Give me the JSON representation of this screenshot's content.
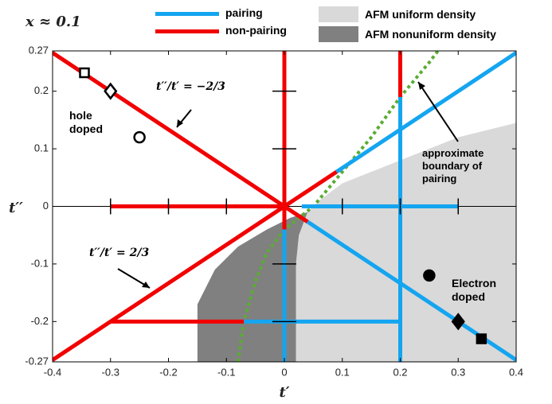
{
  "chart_data": {
    "type": "line",
    "title": "x ≈ 0.1",
    "xlabel": "t′",
    "ylabel": "t′′",
    "xlim": [
      -0.4,
      0.4
    ],
    "ylim": [
      -0.27,
      0.27
    ],
    "xticks": [
      -0.4,
      -0.3,
      -0.2,
      -0.1,
      0,
      0.1,
      0.2,
      0.3,
      0.4
    ],
    "yticks": [
      -0.27,
      -0.2,
      -0.1,
      0,
      0.1,
      0.2,
      0.27
    ],
    "series": [
      {
        "name": "pairing",
        "color": "#14a5f0",
        "segments": [
          {
            "x": [
              0,
              0
            ],
            "y": [
              -0.04,
              -0.27
            ]
          },
          {
            "x": [
              0.03,
              0.3
            ],
            "y": [
              0,
              0
            ]
          },
          {
            "x": [
              -0.07,
              0.2
            ],
            "y": [
              -0.2,
              -0.2
            ]
          },
          {
            "x": [
              0.2,
              0.2
            ],
            "y": [
              0.19,
              -0.27
            ]
          },
          {
            "x": [
              0.09,
              0.4
            ],
            "y": [
              0.06,
              0.2667
            ]
          },
          {
            "x": [
              0.04,
              0.4
            ],
            "y": [
              -0.0267,
              -0.2667
            ]
          }
        ]
      },
      {
        "name": "non-pairing",
        "color": "#f20000",
        "segments": [
          {
            "x": [
              -0.4,
              0
            ],
            "y": [
              0.2667,
              0
            ]
          },
          {
            "x": [
              -0.4,
              0
            ],
            "y": [
              -0.2667,
              0
            ]
          },
          {
            "x": [
              0,
              0
            ],
            "y": [
              0.27,
              -0.04
            ]
          },
          {
            "x": [
              -0.3,
              0
            ],
            "y": [
              0,
              0
            ]
          },
          {
            "x": [
              -0.3,
              -0.07
            ],
            "y": [
              -0.2,
              -0.2
            ]
          },
          {
            "x": [
              0.2,
              0.2
            ],
            "y": [
              0.27,
              0.19
            ]
          },
          {
            "x": [
              0,
              0.09
            ],
            "y": [
              0,
              0.06
            ]
          },
          {
            "x": [
              0,
              0.04
            ],
            "y": [
              0,
              -0.0267
            ]
          }
        ]
      }
    ],
    "regions": [
      {
        "name": "AFM uniform density",
        "color": "#d9d9d9",
        "x": [
          0.02,
          0.02,
          0.025,
          0.04,
          0.06,
          0.1,
          0.2,
          0.3,
          0.4,
          0.4
        ],
        "y": [
          -0.27,
          -0.1,
          -0.05,
          -0.01,
          0.01,
          0.04,
          0.08,
          0.12,
          0.145,
          -0.27
        ]
      },
      {
        "name": "AFM nonuniform density",
        "color": "#808080",
        "x": [
          -0.15,
          -0.15,
          -0.12,
          -0.08,
          -0.03,
          0.01,
          0.04,
          0.025,
          0.02,
          0.02
        ],
        "y": [
          -0.27,
          -0.17,
          -0.11,
          -0.07,
          -0.04,
          -0.02,
          -0.01,
          -0.05,
          -0.1,
          -0.27
        ]
      }
    ],
    "boundary": {
      "color": "#5aac32",
      "x": [
        -0.08,
        -0.07,
        -0.05,
        -0.03,
        0,
        0.05,
        0.1,
        0.15,
        0.2,
        0.25,
        0.265
      ],
      "y": [
        -0.27,
        -0.2,
        -0.13,
        -0.08,
        -0.04,
        0,
        0.06,
        0.12,
        0.19,
        0.25,
        0.27
      ]
    },
    "markers": [
      {
        "shape": "square",
        "filled": false,
        "x": -0.345,
        "y": 0.232
      },
      {
        "shape": "diamond",
        "filled": false,
        "x": -0.3,
        "y": 0.2
      },
      {
        "shape": "circle",
        "filled": false,
        "x": -0.25,
        "y": 0.12
      },
      {
        "shape": "circle",
        "filled": true,
        "x": 0.25,
        "y": -0.12
      },
      {
        "shape": "diamond",
        "filled": true,
        "x": 0.3,
        "y": -0.2
      },
      {
        "shape": "square",
        "filled": true,
        "x": 0.34,
        "y": -0.23
      }
    ],
    "annotations": {
      "ratio_neg": "t′′/t′ = −2/3",
      "ratio_pos": "t′′/t′ = 2/3",
      "hole": "hole\ndoped",
      "electron": "Electron\ndoped",
      "boundary": "approximate\nboundary of\npairing"
    }
  }
}
